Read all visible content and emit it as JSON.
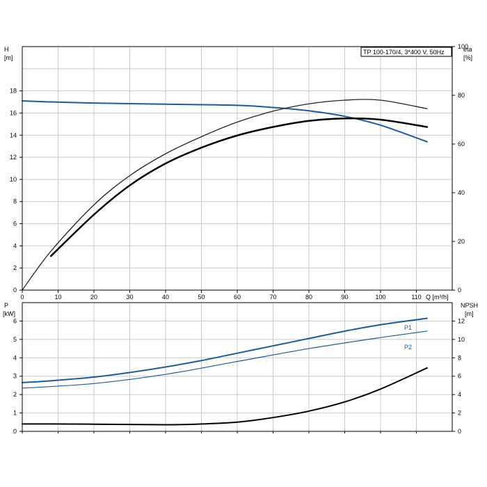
{
  "chart_data": [
    {
      "type": "line",
      "title": "TP 100-170/4, 3*400 V, 50Hz",
      "xlabel": "Q [m³/h]",
      "xlim": [
        0,
        120
      ],
      "xticks": [
        0,
        10,
        20,
        30,
        40,
        50,
        60,
        70,
        80,
        90,
        100,
        110
      ],
      "y_left": {
        "label": "H",
        "unit": "[m]",
        "ylim": [
          0,
          22
        ],
        "ticks": [
          0,
          2,
          4,
          6,
          8,
          10,
          12,
          14,
          16,
          18
        ]
      },
      "y_right": {
        "label": "eta",
        "unit": "[%]",
        "ylim": [
          0,
          100
        ],
        "ticks": [
          0,
          20,
          40,
          60,
          80,
          100
        ]
      },
      "grid": true,
      "series": [
        {
          "axis": "left",
          "color": "#1f5a96",
          "width": 2,
          "x": [
            0,
            8,
            20,
            40,
            60,
            70,
            80,
            90,
            100,
            113
          ],
          "values": [
            17.1,
            17.0,
            16.9,
            16.8,
            16.7,
            16.5,
            16.2,
            15.7,
            14.9,
            13.4
          ]
        },
        {
          "axis": "right",
          "color": "#222222",
          "width": 1.3,
          "x": [
            0,
            8,
            20,
            30,
            40,
            50,
            60,
            70,
            80,
            90,
            100,
            113
          ],
          "values": [
            0,
            16,
            35,
            47,
            56,
            63,
            69,
            73.5,
            76.5,
            78,
            78,
            74.5
          ]
        },
        {
          "axis": "right",
          "color": "#000000",
          "width": 2.5,
          "x": [
            8,
            20,
            30,
            40,
            50,
            60,
            70,
            80,
            90,
            100,
            113
          ],
          "values": [
            14,
            31,
            43,
            52,
            58.5,
            63.5,
            67,
            69.5,
            70.5,
            70,
            67
          ]
        }
      ]
    },
    {
      "type": "line",
      "xlim": [
        0,
        120
      ],
      "y_left": {
        "label": "P",
        "unit": "[kW]",
        "ylim": [
          0,
          7
        ],
        "ticks": [
          0,
          1,
          2,
          3,
          4,
          5,
          6
        ]
      },
      "y_right": {
        "label": "NPSH",
        "unit": "[m]",
        "ylim": [
          0,
          14
        ],
        "ticks": [
          0,
          2,
          4,
          6,
          8,
          10,
          12
        ]
      },
      "grid": true,
      "series": [
        {
          "name": "P1",
          "axis": "left",
          "color": "#1f5a96",
          "width": 2,
          "x": [
            0,
            8,
            20,
            30,
            40,
            50,
            60,
            70,
            80,
            90,
            100,
            113
          ],
          "values": [
            2.65,
            2.75,
            2.95,
            3.2,
            3.5,
            3.85,
            4.25,
            4.65,
            5.05,
            5.45,
            5.8,
            6.15
          ]
        },
        {
          "name": "P2",
          "axis": "left",
          "color": "#1f5a96",
          "width": 1.2,
          "x": [
            0,
            20,
            40,
            60,
            80,
            100,
            113
          ],
          "values": [
            2.35,
            2.6,
            3.1,
            3.8,
            4.5,
            5.1,
            5.45
          ]
        },
        {
          "axis": "right",
          "color": "#000000",
          "width": 2,
          "x": [
            0,
            8,
            20,
            40,
            50,
            60,
            70,
            80,
            90,
            100,
            113
          ],
          "values": [
            0.8,
            0.8,
            0.78,
            0.72,
            0.8,
            1.0,
            1.5,
            2.2,
            3.2,
            4.6,
            6.9
          ]
        }
      ]
    }
  ]
}
